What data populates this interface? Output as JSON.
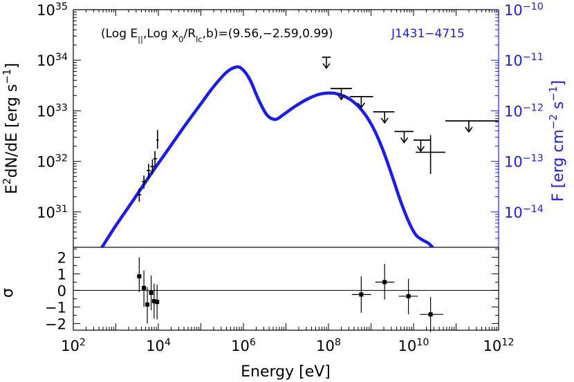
{
  "chart_data": [
    {
      "type": "line",
      "name": "sed-panel",
      "title": "J1431−4715",
      "title_color": "#1a1aff",
      "annotation": {
        "lhs": "(Log E",
        "lhs_sub": "||",
        "mid": ",Log x",
        "mid_sub": "0",
        "slash": "/R",
        "slash_sub": "lc",
        "rhs": ",b)=(9.56,−2.59,0.99)"
      },
      "ylabel": {
        "base": "E",
        "sup": "2",
        "rest": "dN/dE [erg s",
        "sup2": "−1",
        "close": "]"
      },
      "ylabel_right": {
        "base": "F [erg cm",
        "sup": "−2",
        "mid": " s",
        "sup2": "−1",
        "close": "]"
      },
      "x_range_log10": [
        2,
        12
      ],
      "y_range_log10": [
        30.3,
        35.0
      ],
      "y_right_range_log10": [
        -14.7,
        -10.0
      ],
      "y_right_offset_log10": -45,
      "left_ticks": [
        {
          "exp": 31,
          "label": "10",
          "sup": "31"
        },
        {
          "exp": 32,
          "label": "10",
          "sup": "32"
        },
        {
          "exp": 33,
          "label": "10",
          "sup": "33"
        },
        {
          "exp": 34,
          "label": "10",
          "sup": "34"
        },
        {
          "exp": 35,
          "label": "10",
          "sup": "35"
        }
      ],
      "right_ticks": [
        {
          "exp": -10,
          "label": "10",
          "sup": "−10"
        },
        {
          "exp": -11,
          "label": "10",
          "sup": "−11"
        },
        {
          "exp": -12,
          "label": "10",
          "sup": "−12"
        },
        {
          "exp": -13,
          "label": "10",
          "sup": "−13"
        },
        {
          "exp": -14,
          "label": "10",
          "sup": "−14"
        }
      ],
      "model_color": "#1a1aff",
      "model_curve": {
        "log_e": [
          2.65,
          3.0,
          3.4,
          3.8,
          4.2,
          4.6,
          5.0,
          5.3,
          5.6,
          5.8,
          5.95,
          6.15,
          6.35,
          6.55,
          6.75,
          6.95,
          7.2,
          7.5,
          7.8,
          8.1,
          8.3,
          8.5,
          8.7,
          8.9,
          9.1,
          9.3,
          9.5,
          9.7,
          9.9,
          10.05,
          10.2,
          10.35,
          10.45
        ],
        "log_y": [
          30.27,
          30.73,
          31.22,
          31.72,
          32.2,
          32.68,
          33.14,
          33.48,
          33.76,
          33.86,
          33.84,
          33.62,
          33.23,
          32.92,
          32.83,
          32.93,
          33.08,
          33.23,
          33.33,
          33.35,
          33.31,
          33.23,
          33.09,
          32.88,
          32.58,
          32.18,
          31.7,
          31.2,
          30.78,
          30.55,
          30.45,
          30.38,
          30.3
        ]
      },
      "data_points": [
        {
          "log_e": 3.55,
          "log_y": 31.34,
          "y_lo": 31.2,
          "y_hi": 31.47,
          "x_lo": 3.5,
          "x_hi": 3.6
        },
        {
          "log_e": 3.66,
          "log_y": 31.6,
          "y_lo": 31.46,
          "y_hi": 31.72,
          "x_lo": 3.61,
          "x_hi": 3.71
        },
        {
          "log_e": 3.77,
          "log_y": 31.82,
          "y_lo": 31.66,
          "y_hi": 31.95,
          "x_lo": 3.72,
          "x_hi": 3.82
        },
        {
          "log_e": 3.86,
          "log_y": 31.9,
          "y_lo": 31.74,
          "y_hi": 32.04,
          "x_lo": 3.81,
          "x_hi": 3.91
        },
        {
          "log_e": 3.92,
          "log_y": 32.05,
          "y_lo": 31.9,
          "y_hi": 32.2,
          "x_lo": 3.88,
          "x_hi": 3.97
        },
        {
          "log_e": 3.98,
          "log_y": 32.42,
          "y_lo": 32.25,
          "y_hi": 32.62,
          "x_lo": 3.95,
          "x_hi": 4.01
        },
        {
          "log_e": 10.4,
          "log_y": 32.18,
          "y_lo": 31.75,
          "y_hi": 32.52,
          "x_lo": 10.05,
          "x_hi": 10.75
        }
      ],
      "upper_limits": [
        {
          "log_e": 7.95,
          "log_y": 34.06,
          "x_lo": 7.85,
          "x_hi": 8.05
        },
        {
          "log_e": 8.3,
          "log_y": 33.44,
          "x_lo": 8.05,
          "x_hi": 8.55
        },
        {
          "log_e": 8.77,
          "log_y": 33.28,
          "x_lo": 8.5,
          "x_hi": 9.05
        },
        {
          "log_e": 9.32,
          "log_y": 32.98,
          "x_lo": 9.05,
          "x_hi": 9.55
        },
        {
          "log_e": 9.78,
          "log_y": 32.59,
          "x_lo": 9.55,
          "x_hi": 10.0
        },
        {
          "log_e": 10.17,
          "log_y": 32.42,
          "x_lo": 10.0,
          "x_hi": 10.4
        },
        {
          "log_e": 11.3,
          "log_y": 32.8,
          "x_lo": 10.75,
          "x_hi": 12.0
        }
      ]
    },
    {
      "type": "scatter",
      "name": "residual-panel",
      "ylabel": "σ",
      "xlabel": "Energy [eV]",
      "x_range_log10": [
        2,
        12
      ],
      "ylim": [
        -2.4,
        2.6
      ],
      "zero_line": true,
      "y_ticks": [
        "2",
        "1",
        "0",
        "−1",
        "−2"
      ],
      "y_tick_values": [
        2,
        1,
        0,
        -1,
        -2
      ],
      "x_ticks": [
        {
          "exp": 2,
          "label": "10",
          "sup": "2"
        },
        {
          "exp": 4,
          "label": "10",
          "sup": "4"
        },
        {
          "exp": 6,
          "label": "10",
          "sup": "6"
        },
        {
          "exp": 8,
          "label": "10",
          "sup": "8"
        },
        {
          "exp": 10,
          "label": "10",
          "sup": "10"
        },
        {
          "exp": 12,
          "label": "10",
          "sup": "12"
        }
      ],
      "points": [
        {
          "log_e": 3.55,
          "y": 0.85,
          "y_lo": -0.1,
          "y_hi": 2.0,
          "x_lo": 3.5,
          "x_hi": 3.6
        },
        {
          "log_e": 3.66,
          "y": 0.15,
          "y_lo": -1.0,
          "y_hi": 1.2,
          "x_lo": 3.61,
          "x_hi": 3.71
        },
        {
          "log_e": 3.74,
          "y": -0.85,
          "y_lo": -2.0,
          "y_hi": 0.2,
          "x_lo": 3.69,
          "x_hi": 3.79
        },
        {
          "log_e": 3.83,
          "y": -0.15,
          "y_lo": -1.2,
          "y_hi": 0.9,
          "x_lo": 3.78,
          "x_hi": 3.88
        },
        {
          "log_e": 3.9,
          "y": -0.65,
          "y_lo": -1.7,
          "y_hi": 0.4,
          "x_lo": 3.85,
          "x_hi": 3.95
        },
        {
          "log_e": 3.97,
          "y": -0.7,
          "y_lo": -1.75,
          "y_hi": 0.35,
          "x_lo": 3.93,
          "x_hi": 4.01
        },
        {
          "log_e": 8.77,
          "y": -0.25,
          "y_lo": -1.35,
          "y_hi": 0.85,
          "x_lo": 8.55,
          "x_hi": 9.0
        },
        {
          "log_e": 9.32,
          "y": 0.5,
          "y_lo": -0.55,
          "y_hi": 1.6,
          "x_lo": 9.1,
          "x_hi": 9.55
        },
        {
          "log_e": 9.88,
          "y": -0.35,
          "y_lo": -1.45,
          "y_hi": 0.7,
          "x_lo": 9.65,
          "x_hi": 10.1
        },
        {
          "log_e": 10.4,
          "y": -1.45,
          "y_lo": -2.5,
          "y_hi": -0.4,
          "x_lo": 10.15,
          "x_hi": 10.7
        }
      ]
    }
  ]
}
